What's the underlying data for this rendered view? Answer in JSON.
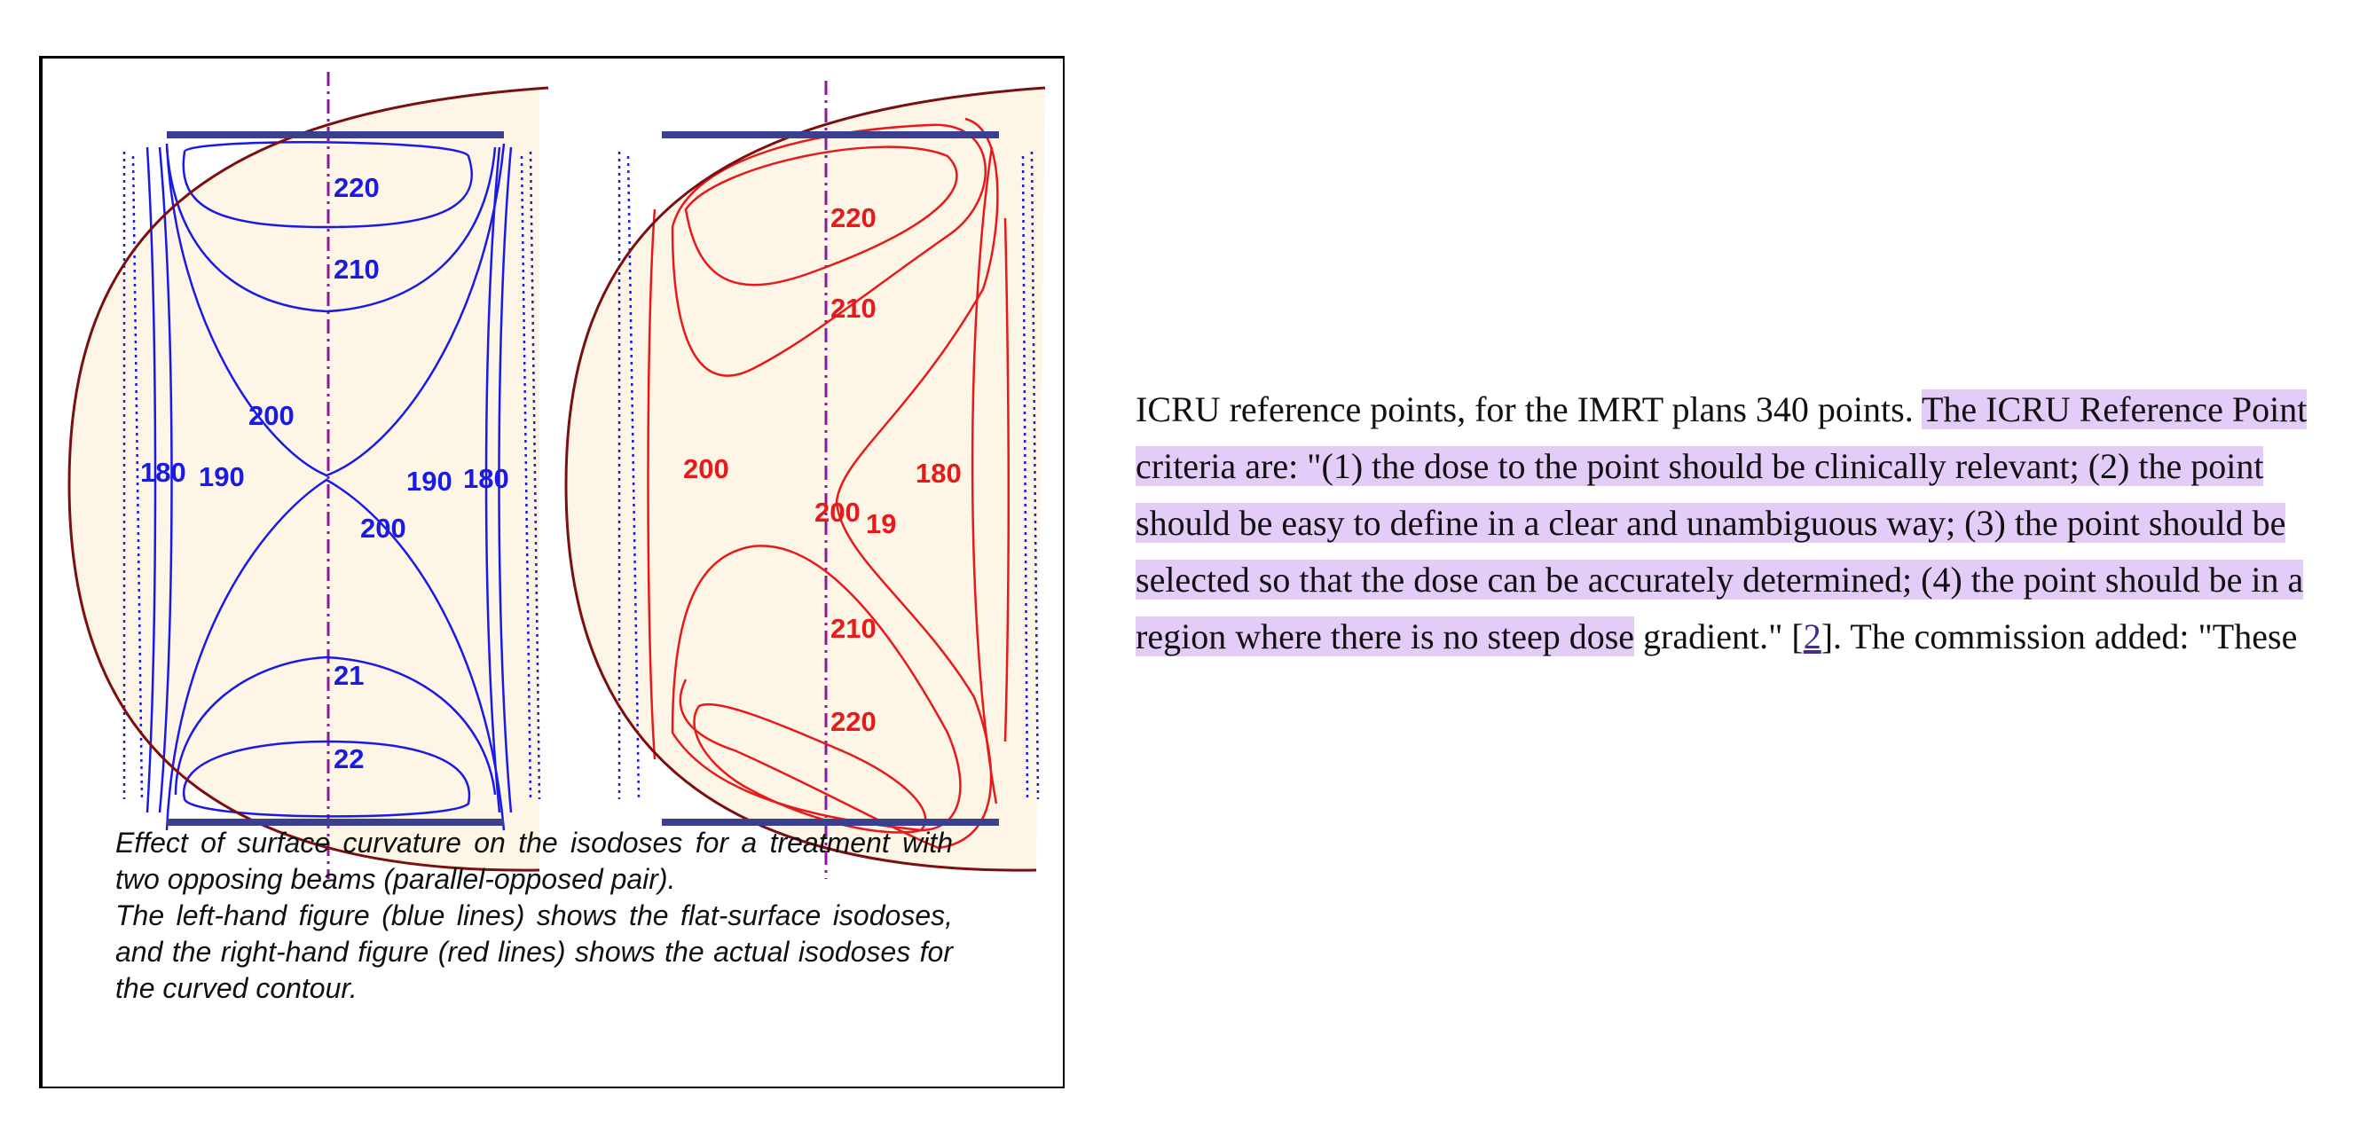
{
  "figure": {
    "left_labels": [
      "220",
      "210",
      "200",
      "180",
      "190",
      "190",
      "180",
      "200",
      "21",
      "22"
    ],
    "right_labels": [
      "220",
      "210",
      "200",
      "180",
      "200",
      "19",
      "210",
      "220"
    ],
    "caption": {
      "line1": "Effect of surface curvature on the isodoses for a treatment with two opposing beams (parallel-opposed pair).",
      "line2": "The left-hand figure (blue lines) shows the flat-surface isodoses, and the right-hand figure (red lines) shows the actual isodoses for the curved contour."
    },
    "colors": {
      "blue_isodose": "#1a1ae6",
      "red_isodose": "#e61a1a",
      "contour": "#7a0f0f",
      "fill": "#fdf5e6",
      "beam_bar": "#3a3f8f",
      "axis": "#8a1a9a"
    }
  },
  "article": {
    "text_before": "ICRU reference points, for the IMRT plans 340 points. ",
    "highlighted": "The ICRU Reference Point criteria are: \"(1) the dose to the point should be clinically relevant; (2) the point should be easy to define in a clear and unambiguous way; (3) the point should be selected so that the dose can be accurately determined; (4) the point should be in a region where there is no steep dose",
    "text_after_1": " gradient.\" [",
    "ref_link": "2",
    "text_after_2": "]. The commission added: \"These"
  }
}
